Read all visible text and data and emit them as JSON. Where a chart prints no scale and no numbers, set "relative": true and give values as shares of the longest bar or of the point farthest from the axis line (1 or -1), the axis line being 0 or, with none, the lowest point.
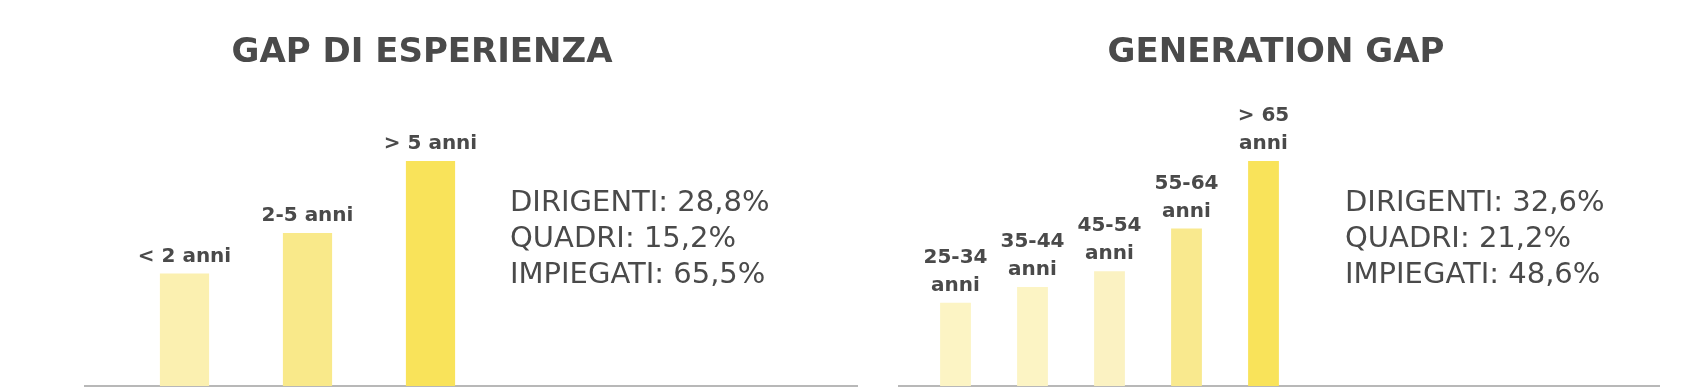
{
  "chart_data": [
    {
      "type": "bar",
      "title": "GAP DI ESPERIENZA",
      "relative": true,
      "categories": [
        "< 2 anni",
        "2-5 anni",
        "> 5 anni"
      ],
      "values": [
        0.5,
        0.68,
        1
      ],
      "colors": [
        "#fbf0b0",
        "#f9e98a",
        "#f9e35a"
      ],
      "annotations": [
        "DIRIGENTI: 28,8%",
        "QUADRI: 15,2%",
        "IMPIEGATI: 65,5%"
      ]
    },
    {
      "type": "bar",
      "title": "GENERATION GAP",
      "relative": true,
      "categories": [
        "25-34 anni",
        "35-44 anni",
        "45-54 anni",
        "55-64 anni",
        "> 65 anni"
      ],
      "values": [
        0.37,
        0.44,
        0.51,
        0.7,
        1
      ],
      "colors": [
        "#fcf4c4",
        "#fcf4c4",
        "#fbf2c2",
        "#f9e98e",
        "#f9e35a"
      ],
      "annotations": [
        "DIRIGENTI: 32,6%",
        "QUADRI: 21,2%",
        "IMPIEGATI: 48,6%"
      ]
    }
  ]
}
